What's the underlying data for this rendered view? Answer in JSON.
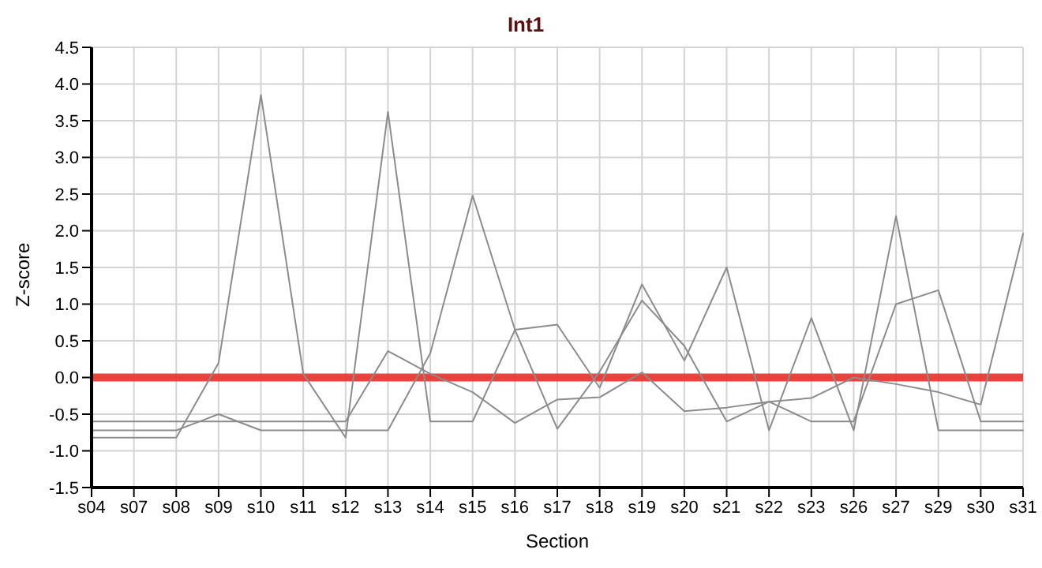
{
  "chart_data": {
    "type": "line",
    "title": "Int1",
    "xlabel": "Section",
    "ylabel": "Z-score",
    "categories": [
      "s04",
      "s07",
      "s08",
      "s09",
      "s10",
      "s11",
      "s12",
      "s13",
      "s14",
      "s15",
      "s16",
      "s17",
      "s18",
      "s19",
      "s20",
      "s21",
      "s22",
      "s23",
      "s26",
      "s27",
      "s29",
      "s30",
      "s31"
    ],
    "series": [
      {
        "color": "#8c8c8c",
        "values": [
          -0.82,
          -0.82,
          -0.82,
          0.2,
          3.85,
          0.05,
          -0.82,
          3.62,
          -0.6,
          -0.6,
          0.65,
          0.72,
          -0.14,
          1.27,
          0.23,
          1.5,
          -0.72,
          0.81,
          -0.72,
          2.2,
          -0.72,
          -0.72,
          -0.72
        ]
      },
      {
        "color": "#8c8c8c",
        "values": [
          -0.72,
          -0.72,
          -0.72,
          -0.5,
          -0.72,
          -0.72,
          -0.72,
          -0.72,
          0.33,
          2.48,
          0.65,
          -0.7,
          0.08,
          1.05,
          0.43,
          -0.6,
          -0.33,
          -0.6,
          -0.6,
          1.0,
          1.19,
          -0.6,
          -0.6
        ]
      },
      {
        "color": "#8c8c8c",
        "values": [
          -0.6,
          -0.6,
          -0.6,
          -0.6,
          -0.6,
          -0.6,
          -0.6,
          0.36,
          0.05,
          -0.2,
          -0.62,
          -0.3,
          -0.27,
          0.07,
          -0.46,
          -0.41,
          -0.33,
          -0.28,
          0.0,
          -0.09,
          -0.2,
          -0.37,
          1.96
        ]
      }
    ],
    "ylim": [
      -1.5,
      4.5
    ],
    "yticks": [
      -1.5,
      {
        "value": -1,
        "label": "-1.0"
      },
      -0.5,
      {
        "value": 0,
        "label": "0.0"
      },
      0.5,
      {
        "value": 1,
        "label": "1.0"
      },
      1.5,
      {
        "value": 2,
        "label": "2.0"
      },
      2.5,
      {
        "value": 3,
        "label": "3.0"
      },
      3.5,
      {
        "value": 4,
        "label": "4.0"
      },
      4.5
    ],
    "ref_lines": [
      {
        "axis": "y",
        "value": 0,
        "color": "#e8302a"
      }
    ],
    "grid": true,
    "legend": false,
    "marker": "none",
    "line_style": "solid"
  }
}
